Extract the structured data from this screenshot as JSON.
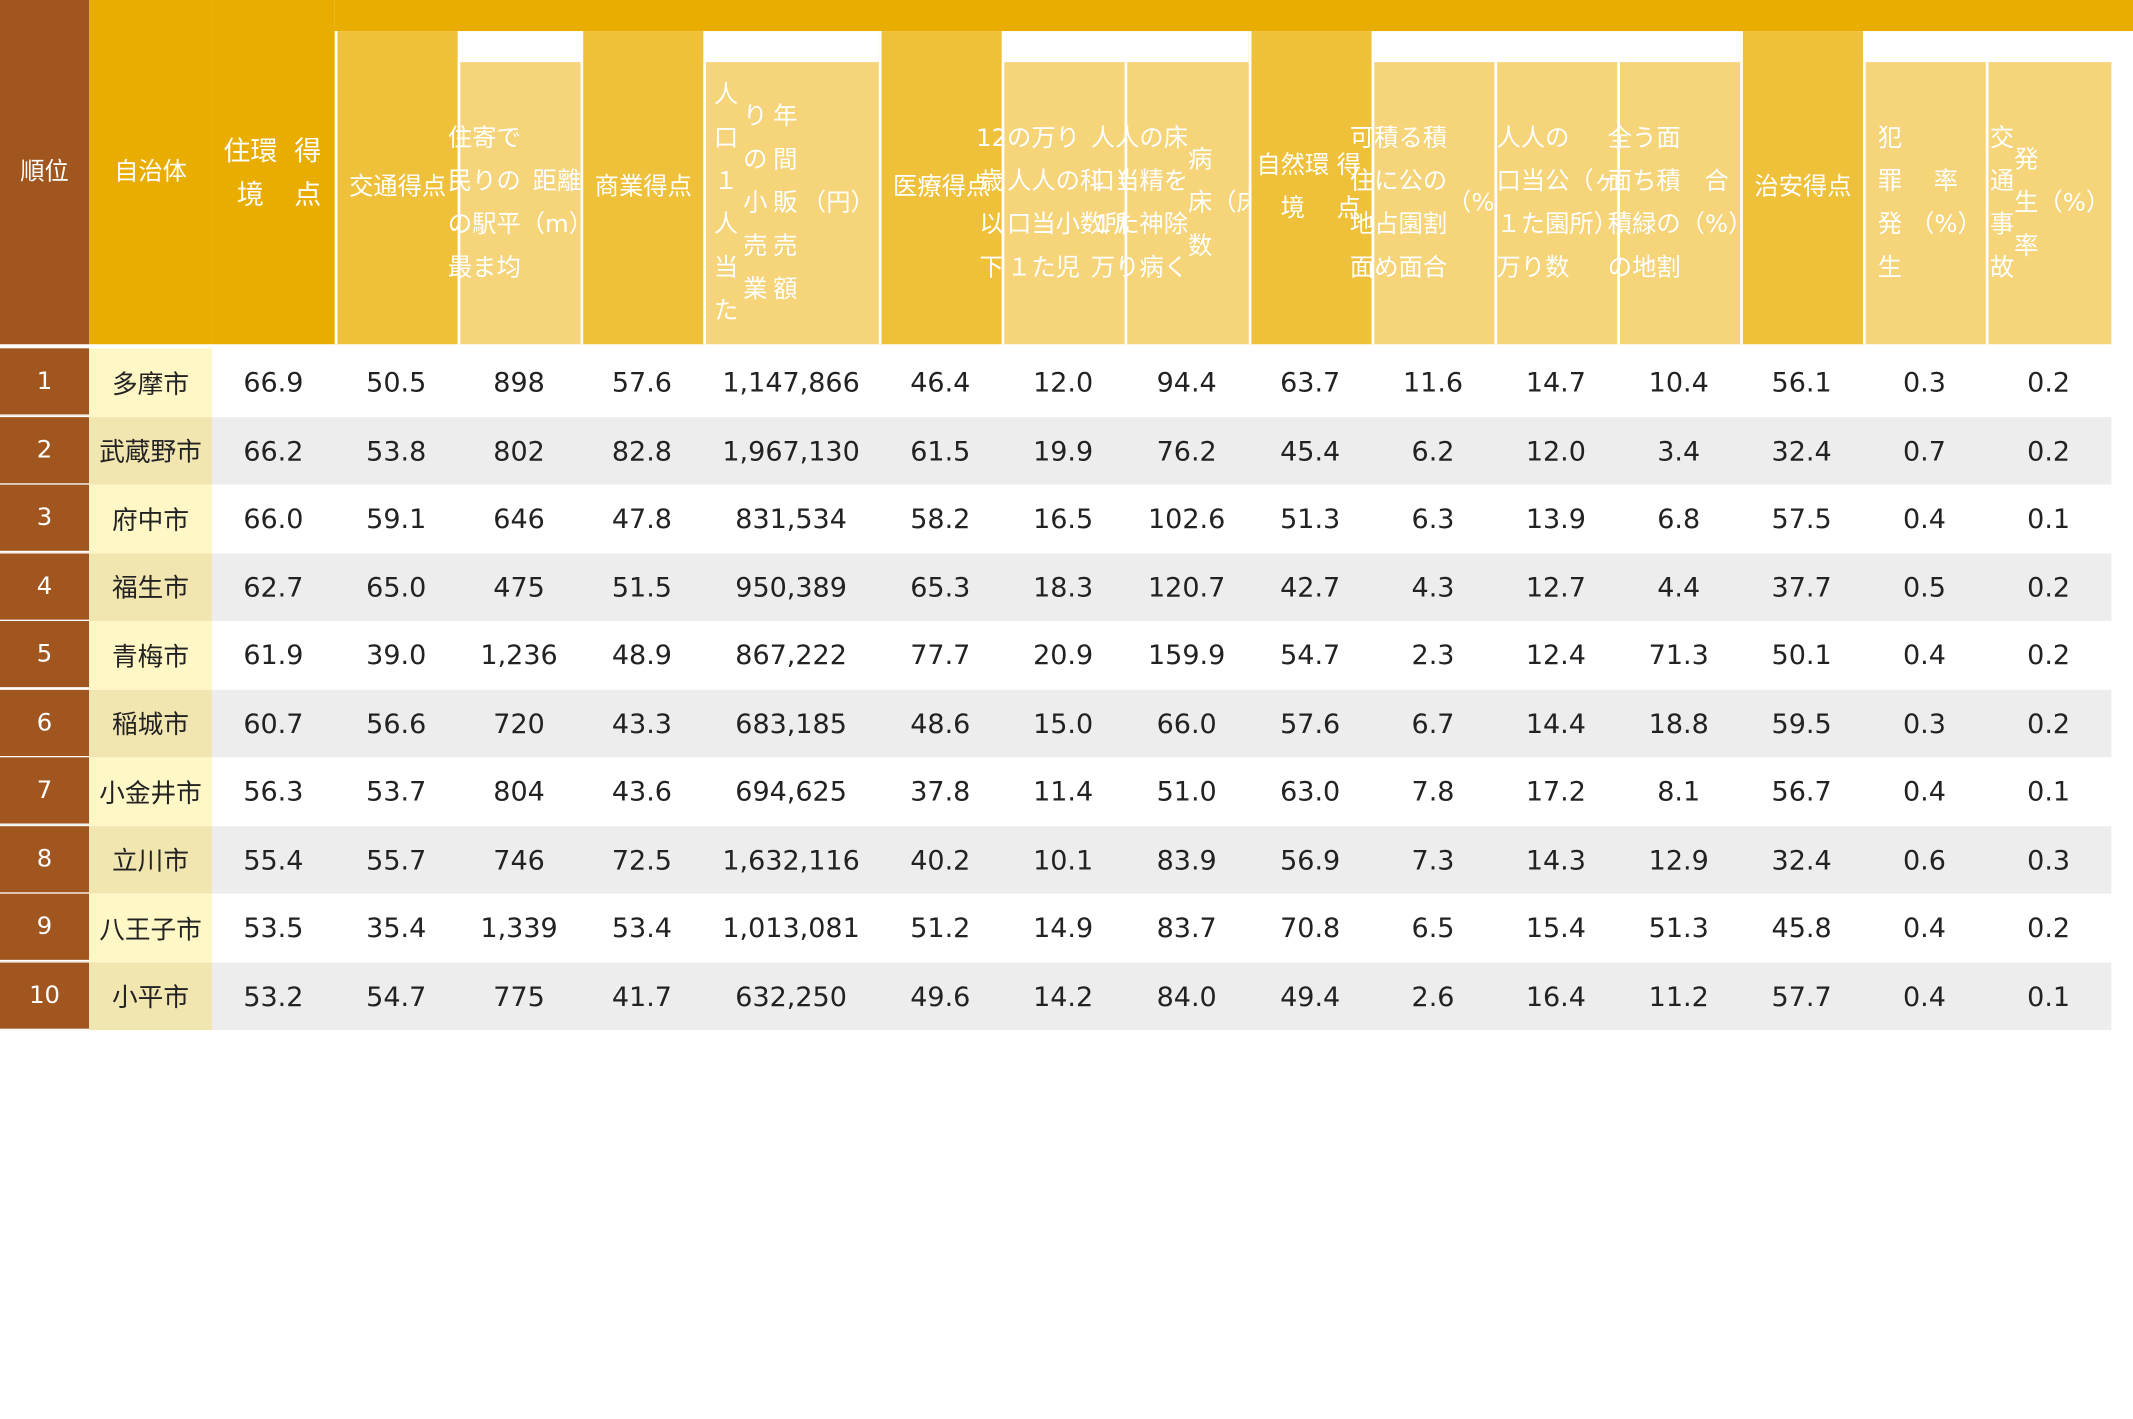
{
  "colors": {
    "rank_bg": "#A0561E",
    "city_header_bg": "#E9AD00",
    "score_header_bg": "#EFC13B",
    "sub_header_bg": "#F5D47A",
    "city_cell_bg": "#FFF7C6",
    "row_alt_bg": "#EDEDED"
  },
  "headers": {
    "rank": "順位",
    "city": "自治体",
    "living_score": "住環境\n得点",
    "transport_score": "交通\n得点",
    "station_distance": "住民の最\n寄り駅ま\nでの平均\n距離（m）",
    "commerce_score": "商業\n得点",
    "retail_sales": "人口１人当た\nりの小売業\n年 間 販 売 額\n（円）",
    "medical_score": "医療\n得点",
    "pediatrics": "12 歳以下\nの人口１\n万人当た\nりの小児\n科数\n（ヶ所）",
    "hospital_beds": "人口１万\n人当たり\nの精神病\n床を除く\n病床数\n（床）",
    "nature_score": "自然環境\n得点",
    "park_area_ratio": "可住地面\n積に占め\nる公園面\n積の割合\n（%）",
    "parks_per_10k": "人口１万\n人当たり\nの公園数\n（ヶ所）",
    "green_ratio": "全面積の\nうち緑地\n面積の割\n合（%）",
    "safety_score": "治安\n得点",
    "crime_rate": "犯罪発生\n率（%）",
    "traffic_accident_rate": "交通事故\n発生率\n（%）"
  },
  "rows": [
    {
      "rank": "1",
      "city": "多摩市",
      "values": [
        "66.9",
        "50.5",
        "898",
        "57.6",
        "1,147,866",
        "46.4",
        "12.0",
        "94.4",
        "63.7",
        "11.6",
        "14.7",
        "10.4",
        "56.1",
        "0.3",
        "0.2"
      ]
    },
    {
      "rank": "2",
      "city": "武蔵野市",
      "values": [
        "66.2",
        "53.8",
        "802",
        "82.8",
        "1,967,130",
        "61.5",
        "19.9",
        "76.2",
        "45.4",
        "6.2",
        "12.0",
        "3.4",
        "32.4",
        "0.7",
        "0.2"
      ]
    },
    {
      "rank": "3",
      "city": "府中市",
      "values": [
        "66.0",
        "59.1",
        "646",
        "47.8",
        "831,534",
        "58.2",
        "16.5",
        "102.6",
        "51.3",
        "6.3",
        "13.9",
        "6.8",
        "57.5",
        "0.4",
        "0.1"
      ]
    },
    {
      "rank": "4",
      "city": "福生市",
      "values": [
        "62.7",
        "65.0",
        "475",
        "51.5",
        "950,389",
        "65.3",
        "18.3",
        "120.7",
        "42.7",
        "4.3",
        "12.7",
        "4.4",
        "37.7",
        "0.5",
        "0.2"
      ]
    },
    {
      "rank": "5",
      "city": "青梅市",
      "values": [
        "61.9",
        "39.0",
        "1,236",
        "48.9",
        "867,222",
        "77.7",
        "20.9",
        "159.9",
        "54.7",
        "2.3",
        "12.4",
        "71.3",
        "50.1",
        "0.4",
        "0.2"
      ]
    },
    {
      "rank": "6",
      "city": "稲城市",
      "values": [
        "60.7",
        "56.6",
        "720",
        "43.3",
        "683,185",
        "48.6",
        "15.0",
        "66.0",
        "57.6",
        "6.7",
        "14.4",
        "18.8",
        "59.5",
        "0.3",
        "0.2"
      ]
    },
    {
      "rank": "7",
      "city": "小金井市",
      "values": [
        "56.3",
        "53.7",
        "804",
        "43.6",
        "694,625",
        "37.8",
        "11.4",
        "51.0",
        "63.0",
        "7.8",
        "17.2",
        "8.1",
        "56.7",
        "0.4",
        "0.1"
      ]
    },
    {
      "rank": "8",
      "city": "立川市",
      "values": [
        "55.4",
        "55.7",
        "746",
        "72.5",
        "1,632,116",
        "40.2",
        "10.1",
        "83.9",
        "56.9",
        "7.3",
        "14.3",
        "12.9",
        "32.4",
        "0.6",
        "0.3"
      ]
    },
    {
      "rank": "9",
      "city": "八王子市",
      "values": [
        "53.5",
        "35.4",
        "1,339",
        "53.4",
        "1,013,081",
        "51.2",
        "14.9",
        "83.7",
        "70.8",
        "6.5",
        "15.4",
        "51.3",
        "45.8",
        "0.4",
        "0.2"
      ]
    },
    {
      "rank": "10",
      "city": "小平市",
      "values": [
        "53.2",
        "54.7",
        "775",
        "41.7",
        "632,250",
        "49.6",
        "14.2",
        "84.0",
        "49.4",
        "2.6",
        "16.4",
        "11.2",
        "57.7",
        "0.4",
        "0.1"
      ]
    }
  ]
}
